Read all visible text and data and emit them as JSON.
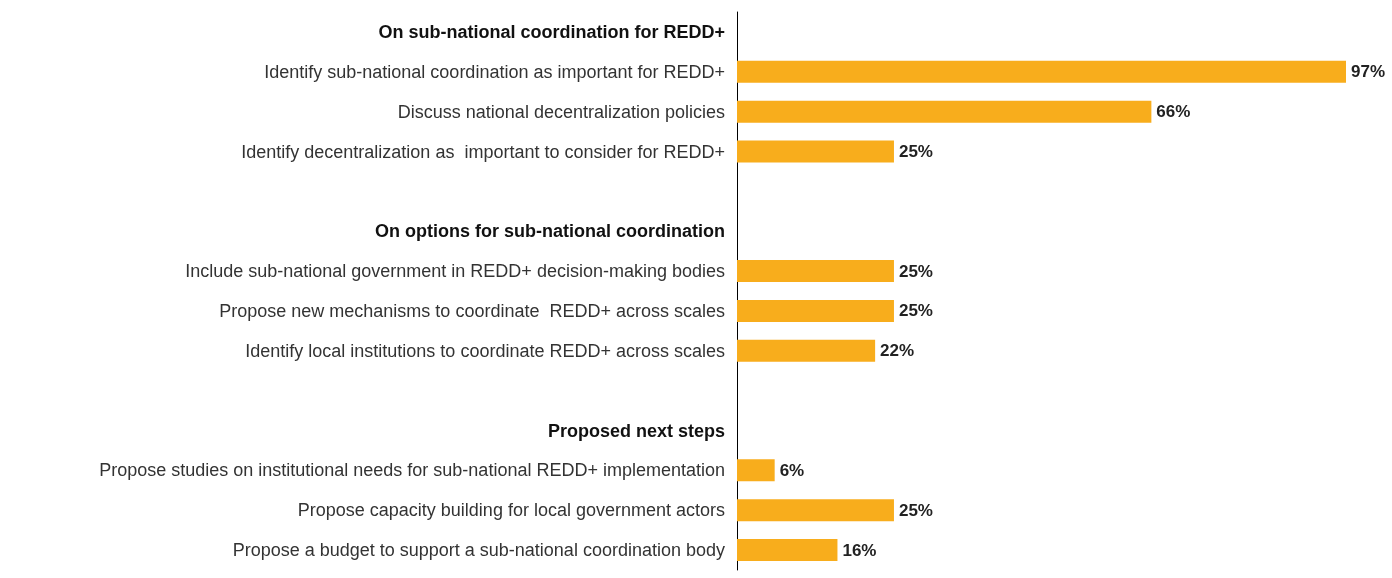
{
  "chart_data": {
    "type": "bar",
    "orientation": "horizontal",
    "categories": [
      "On sub-national coordination for REDD+",
      "Identify sub-national coordination as important for REDD+",
      "Discuss national decentralization policies",
      "Identify decentralization as  important to consider for REDD+",
      null,
      "On options for sub-national coordination",
      "Include sub-national government in REDD+ decision-making bodies",
      "Propose new mechanisms to coordinate  REDD+ across scales",
      "Identify local institutions to coordinate REDD+ across scales",
      null,
      "Proposed next steps",
      "Propose studies on institutional needs for sub-national REDD+ implementation",
      "Propose capacity building for local government actors",
      "Propose a budget to support a sub-national coordination body"
    ],
    "values": [
      null,
      97,
      66,
      25,
      null,
      null,
      25,
      25,
      22,
      null,
      null,
      6,
      25,
      16
    ],
    "value_labels": [
      null,
      "97%",
      "66%",
      "25%",
      null,
      null,
      "25%",
      "25%",
      "22%",
      null,
      null,
      "6%",
      "25%",
      "16%"
    ],
    "color": "#f8ad1c"
  }
}
